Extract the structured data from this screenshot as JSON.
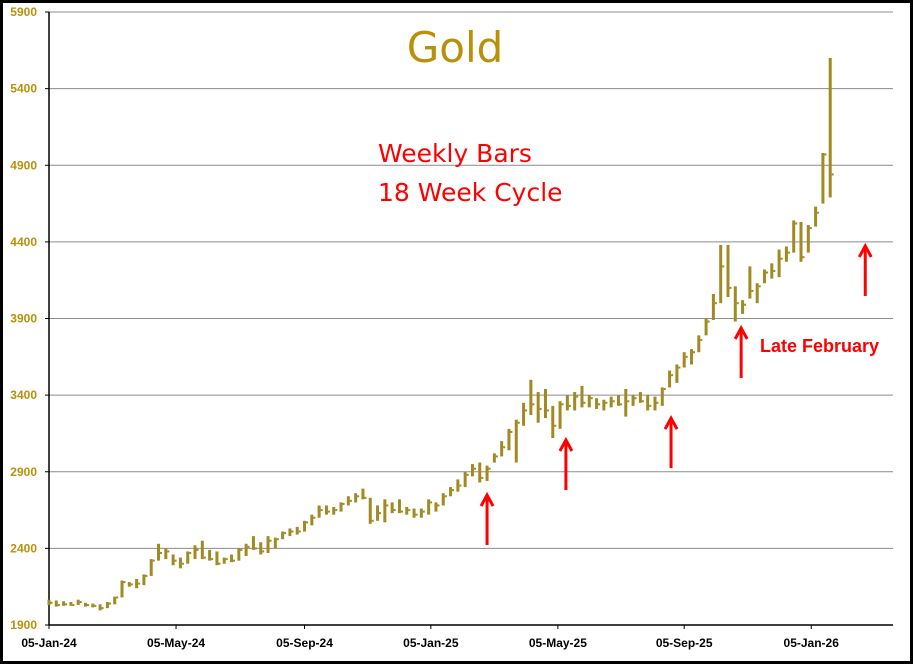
{
  "chart_data": {
    "type": "ohlc-bar",
    "title": "Gold",
    "subtitle_lines": [
      "Weekly Bars",
      "18 Week Cycle"
    ],
    "annotation": "Late February",
    "ylim": [
      1900,
      5900
    ],
    "yticks": [
      1900,
      2400,
      2900,
      3400,
      3900,
      4400,
      4900,
      5400,
      5900
    ],
    "grid": true,
    "xticks": [
      {
        "label": "05-Jan-24",
        "week": 0
      },
      {
        "label": "05-May-24",
        "week": 17.4
      },
      {
        "label": "05-Sep-24",
        "week": 35
      },
      {
        "label": "05-Jan-25",
        "week": 52.3
      },
      {
        "label": "05-May-25",
        "week": 69.7
      },
      {
        "label": "05-Sep-25",
        "week": 87
      },
      {
        "label": "05-Jan-26",
        "week": 104.4
      }
    ],
    "xlim_weeks": [
      0,
      115.6
    ],
    "colors": {
      "bars": "#a08a22",
      "title": "#b8900a",
      "annotations": "#ff0000",
      "grid": "#8c8c8c"
    },
    "bars_hlc": [
      [
        2065,
        2030,
        2045
      ],
      [
        2060,
        2020,
        2030
      ],
      [
        2055,
        2025,
        2035
      ],
      [
        2050,
        2025,
        2030
      ],
      [
        2065,
        2030,
        2050
      ],
      [
        2045,
        2020,
        2030
      ],
      [
        2040,
        2015,
        2025
      ],
      [
        2035,
        1995,
        2010
      ],
      [
        2050,
        2010,
        2040
      ],
      [
        2085,
        2035,
        2080
      ],
      [
        2190,
        2080,
        2180
      ],
      [
        2180,
        2150,
        2165
      ],
      [
        2200,
        2140,
        2170
      ],
      [
        2230,
        2160,
        2220
      ],
      [
        2330,
        2220,
        2320
      ],
      [
        2430,
        2320,
        2370
      ],
      [
        2400,
        2330,
        2380
      ],
      [
        2360,
        2290,
        2320
      ],
      [
        2340,
        2270,
        2300
      ],
      [
        2380,
        2300,
        2370
      ],
      [
        2420,
        2330,
        2390
      ],
      [
        2450,
        2330,
        2340
      ],
      [
        2390,
        2320,
        2330
      ],
      [
        2380,
        2290,
        2300
      ],
      [
        2340,
        2300,
        2330
      ],
      [
        2360,
        2310,
        2320
      ],
      [
        2400,
        2320,
        2390
      ],
      [
        2430,
        2350,
        2410
      ],
      [
        2480,
        2390,
        2400
      ],
      [
        2440,
        2360,
        2380
      ],
      [
        2480,
        2370,
        2450
      ],
      [
        2470,
        2400,
        2460
      ],
      [
        2510,
        2460,
        2500
      ],
      [
        2530,
        2480,
        2510
      ],
      [
        2540,
        2490,
        2510
      ],
      [
        2580,
        2510,
        2570
      ],
      [
        2620,
        2550,
        2600
      ],
      [
        2680,
        2600,
        2650
      ],
      [
        2680,
        2620,
        2640
      ],
      [
        2670,
        2620,
        2650
      ],
      [
        2700,
        2640,
        2690
      ],
      [
        2740,
        2680,
        2710
      ],
      [
        2760,
        2700,
        2740
      ],
      [
        2790,
        2720,
        2730
      ],
      [
        2730,
        2560,
        2580
      ],
      [
        2680,
        2580,
        2630
      ],
      [
        2720,
        2570,
        2680
      ],
      [
        2700,
        2630,
        2650
      ],
      [
        2720,
        2630,
        2640
      ],
      [
        2670,
        2620,
        2650
      ],
      [
        2660,
        2600,
        2620
      ],
      [
        2660,
        2600,
        2640
      ],
      [
        2720,
        2620,
        2700
      ],
      [
        2700,
        2640,
        2680
      ],
      [
        2760,
        2680,
        2740
      ],
      [
        2800,
        2740,
        2780
      ],
      [
        2850,
        2770,
        2810
      ],
      [
        2900,
        2800,
        2880
      ],
      [
        2950,
        2870,
        2920
      ],
      [
        2960,
        2830,
        2860
      ],
      [
        2940,
        2840,
        2920
      ],
      [
        3020,
        2960,
        3000
      ],
      [
        3100,
        3000,
        3060
      ],
      [
        3180,
        3040,
        3160
      ],
      [
        3240,
        2960,
        3220
      ],
      [
        3350,
        3200,
        3300
      ],
      [
        3500,
        3270,
        3340
      ],
      [
        3420,
        3220,
        3310
      ],
      [
        3440,
        3250,
        3300
      ],
      [
        3330,
        3120,
        3200
      ],
      [
        3360,
        3180,
        3340
      ],
      [
        3400,
        3300,
        3330
      ],
      [
        3420,
        3300,
        3390
      ],
      [
        3460,
        3320,
        3350
      ],
      [
        3400,
        3320,
        3380
      ],
      [
        3380,
        3310,
        3340
      ],
      [
        3370,
        3300,
        3350
      ],
      [
        3390,
        3320,
        3360
      ],
      [
        3400,
        3330,
        3340
      ],
      [
        3440,
        3260,
        3360
      ],
      [
        3400,
        3330,
        3380
      ],
      [
        3420,
        3350,
        3360
      ],
      [
        3400,
        3300,
        3330
      ],
      [
        3390,
        3300,
        3350
      ],
      [
        3450,
        3330,
        3440
      ],
      [
        3560,
        3450,
        3530
      ],
      [
        3600,
        3480,
        3580
      ],
      [
        3680,
        3580,
        3650
      ],
      [
        3700,
        3600,
        3680
      ],
      [
        3790,
        3680,
        3760
      ],
      [
        3900,
        3790,
        3880
      ],
      [
        4060,
        3890,
        4000
      ],
      [
        4380,
        4000,
        4240
      ],
      [
        4380,
        4040,
        4100
      ],
      [
        4110,
        3880,
        4000
      ],
      [
        4020,
        3930,
        3990
      ],
      [
        4240,
        4030,
        4080
      ],
      [
        4130,
        4000,
        4110
      ],
      [
        4220,
        4130,
        4200
      ],
      [
        4260,
        4160,
        4210
      ],
      [
        4350,
        4170,
        4290
      ],
      [
        4370,
        4270,
        4330
      ],
      [
        4540,
        4330,
        4520
      ],
      [
        4530,
        4270,
        4300
      ],
      [
        4510,
        4330,
        4490
      ],
      [
        4630,
        4500,
        4590
      ],
      [
        4980,
        4650,
        4970
      ],
      [
        5600,
        4690,
        4840
      ]
    ],
    "arrows": [
      {
        "week": 60,
        "from": 2422,
        "to": 2748
      },
      {
        "week": 70.8,
        "from": 2781,
        "to": 3107
      },
      {
        "week": 85.2,
        "from": 2924,
        "to": 3250
      },
      {
        "week": 94.8,
        "from": 3512,
        "to": 3838
      },
      {
        "week": 111.8,
        "from": 4047,
        "to": 4373
      }
    ]
  }
}
